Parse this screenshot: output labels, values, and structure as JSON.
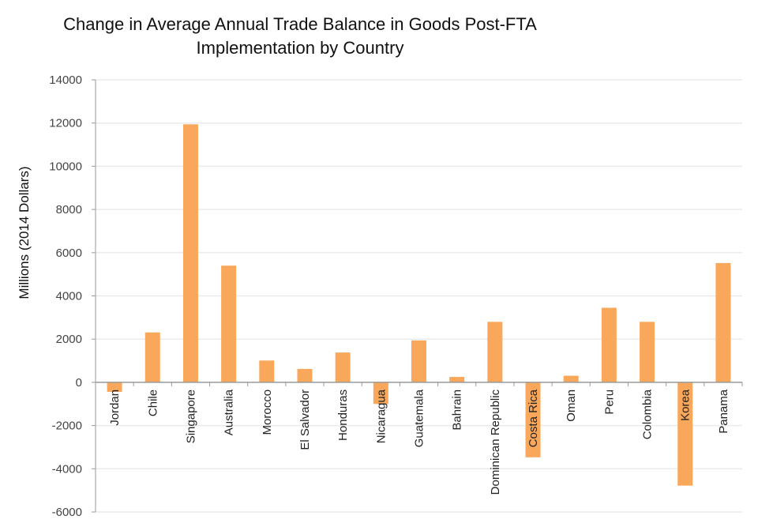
{
  "chart_data": {
    "type": "bar",
    "title": "Change in Average Annual Trade Balance in Goods Post-FTA",
    "title_line2": "Implementation by Country",
    "xlabel": "",
    "ylabel": "Millions (2014 Dollars)",
    "ylim": [
      -6000,
      14000
    ],
    "yticks": [
      14000,
      12000,
      10000,
      8000,
      6000,
      4000,
      2000,
      0,
      -2000,
      -4000,
      -6000
    ],
    "grid": true,
    "bar_color": "#F9A75A",
    "categories": [
      "Jordan",
      "Chile",
      "Singapore",
      "Australia",
      "Morocco",
      "El Salvador",
      "Honduras",
      "Nicaragua",
      "Guatemala",
      "Bahrain",
      "Dominican Republic",
      "Costa Rica",
      "Oman",
      "Peru",
      "Colombia",
      "Korea",
      "Panama"
    ],
    "values": [
      -440,
      2310,
      11940,
      5400,
      1010,
      620,
      1380,
      -1000,
      1940,
      250,
      2800,
      -3470,
      305,
      3450,
      2800,
      -4780,
      5520
    ]
  }
}
